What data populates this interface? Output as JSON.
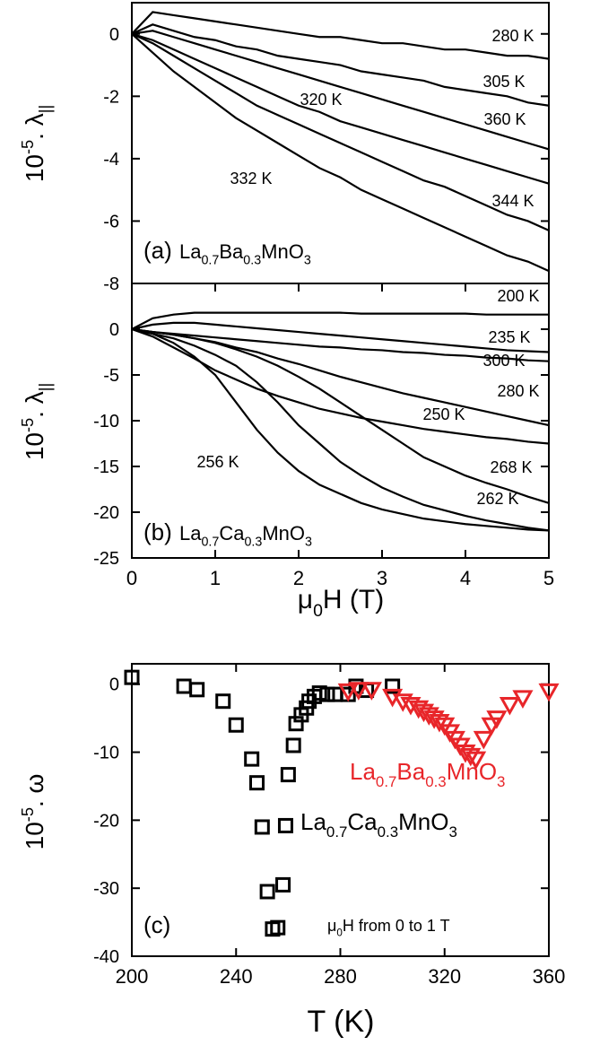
{
  "chart_data": [
    {
      "type": "line",
      "panel_label": "(a)",
      "formula": [
        {
          "text": "La"
        },
        {
          "text": "0.7",
          "script": "sub"
        },
        {
          "text": "Ba"
        },
        {
          "text": "0.3",
          "script": "sub"
        },
        {
          "text": "MnO"
        },
        {
          "text": "3",
          "script": "sub"
        }
      ],
      "ylabel": [
        {
          "text": "10"
        },
        {
          "text": "-5",
          "script": "sup"
        },
        {
          "text": ". λ"
        },
        {
          "text": "||",
          "script": "sub"
        }
      ],
      "xlim": [
        0,
        5
      ],
      "ylim": [
        -8,
        1
      ],
      "yticks": [
        -8,
        -6,
        -4,
        -2,
        0
      ],
      "x": [
        0,
        0.25,
        0.5,
        0.75,
        1,
        1.25,
        1.5,
        1.75,
        2,
        2.25,
        2.5,
        2.75,
        3,
        3.25,
        3.5,
        3.75,
        4,
        4.25,
        4.5,
        4.75,
        5
      ],
      "series": [
        {
          "name": "280 K",
          "color": "#000000",
          "values": [
            0,
            0.7,
            0.6,
            0.5,
            0.4,
            0.3,
            0.2,
            0.1,
            0,
            -0.1,
            -0.1,
            -0.2,
            -0.3,
            -0.3,
            -0.4,
            -0.5,
            -0.5,
            -0.6,
            -0.7,
            -0.7,
            -0.8
          ]
        },
        {
          "name": "305 K",
          "color": "#000000",
          "values": [
            0,
            0.3,
            0.1,
            -0.1,
            -0.2,
            -0.4,
            -0.5,
            -0.7,
            -0.8,
            -0.9,
            -1,
            -1.2,
            -1.3,
            -1.4,
            -1.5,
            -1.7,
            -1.8,
            -1.9,
            -2,
            -2.2,
            -2.3
          ]
        },
        {
          "name": "320 K",
          "color": "#000000",
          "values": [
            0,
            -0.2,
            -0.5,
            -0.8,
            -1.1,
            -1.4,
            -1.7,
            -2,
            -2.3,
            -2.5,
            -2.8,
            -3,
            -3.2,
            -3.4,
            -3.6,
            -3.8,
            -4,
            -4.2,
            -4.4,
            -4.6,
            -4.8
          ]
        },
        {
          "name": "360 K",
          "color": "#000000",
          "values": [
            0,
            0.1,
            -0.1,
            -0.3,
            -0.5,
            -0.7,
            -0.9,
            -1.1,
            -1.3,
            -1.5,
            -1.7,
            -1.9,
            -2.1,
            -2.3,
            -2.5,
            -2.7,
            -2.9,
            -3.1,
            -3.3,
            -3.5,
            -3.7
          ]
        },
        {
          "name": "344 K",
          "color": "#000000",
          "values": [
            0,
            -0.3,
            -0.7,
            -1.1,
            -1.5,
            -1.9,
            -2.3,
            -2.6,
            -2.9,
            -3.2,
            -3.5,
            -3.8,
            -4.1,
            -4.4,
            -4.7,
            -4.9,
            -5.2,
            -5.5,
            -5.8,
            -6,
            -6.3
          ]
        },
        {
          "name": "332 K",
          "color": "#000000",
          "values": [
            0,
            -0.6,
            -1.2,
            -1.7,
            -2.2,
            -2.7,
            -3.1,
            -3.5,
            -3.9,
            -4.3,
            -4.6,
            -5,
            -5.3,
            -5.6,
            -5.9,
            -6.2,
            -6.5,
            -6.8,
            -7.1,
            -7.3,
            -7.6
          ]
        }
      ]
    },
    {
      "type": "line",
      "panel_label": "(b)",
      "formula": [
        {
          "text": "La"
        },
        {
          "text": "0.7",
          "script": "sub"
        },
        {
          "text": "Ca"
        },
        {
          "text": "0.3",
          "script": "sub"
        },
        {
          "text": "MnO"
        },
        {
          "text": "3",
          "script": "sub"
        }
      ],
      "ylabel": [
        {
          "text": "10"
        },
        {
          "text": "-5",
          "script": "sup"
        },
        {
          "text": ". λ"
        },
        {
          "text": "||",
          "script": "sub"
        }
      ],
      "xlabel": [
        {
          "text": "μ"
        },
        {
          "text": "0",
          "script": "sub"
        },
        {
          "text": "H (T)"
        }
      ],
      "xlim": [
        0,
        5
      ],
      "xticks": [
        0,
        1,
        2,
        3,
        4,
        5
      ],
      "ylim": [
        -25,
        5
      ],
      "yticks": [
        -25,
        -20,
        -15,
        -10,
        -5,
        0
      ],
      "x": [
        0,
        0.25,
        0.5,
        0.75,
        1,
        1.25,
        1.5,
        1.75,
        2,
        2.25,
        2.5,
        2.75,
        3,
        3.25,
        3.5,
        3.75,
        4,
        4.25,
        4.5,
        4.75,
        5
      ],
      "series": [
        {
          "name": "200 K",
          "color": "#000000",
          "values": [
            0,
            1.2,
            1.6,
            1.8,
            1.8,
            1.8,
            1.8,
            1.8,
            1.8,
            1.8,
            1.8,
            1.7,
            1.7,
            1.7,
            1.7,
            1.7,
            1.7,
            1.6,
            1.6,
            1.6,
            1.6
          ]
        },
        {
          "name": "235 K",
          "color": "#000000",
          "values": [
            0,
            0.5,
            0.7,
            0.7,
            0.5,
            0.3,
            0.1,
            -0.1,
            -0.3,
            -0.5,
            -0.7,
            -0.9,
            -1.1,
            -1.3,
            -1.5,
            -1.7,
            -1.9,
            -2.1,
            -2.3,
            -2.4,
            -2.5
          ]
        },
        {
          "name": "300 K",
          "color": "#000000",
          "values": [
            0,
            -0.3,
            -0.5,
            -0.7,
            -0.9,
            -1.1,
            -1.3,
            -1.5,
            -1.7,
            -1.9,
            -2,
            -2.2,
            -2.3,
            -2.5,
            -2.6,
            -2.8,
            -2.9,
            -3.1,
            -3.2,
            -3.4,
            -3.5
          ]
        },
        {
          "name": "280 K",
          "color": "#000000",
          "values": [
            0,
            -0.3,
            -0.6,
            -1,
            -1.4,
            -2,
            -2.5,
            -3.2,
            -3.8,
            -4.5,
            -5.2,
            -5.8,
            -6.4,
            -7,
            -7.5,
            -8,
            -8.5,
            -9,
            -9.5,
            -10,
            -10.5
          ]
        },
        {
          "name": "250 K",
          "color": "#000000",
          "values": [
            0,
            -0.8,
            -2,
            -3.2,
            -4.5,
            -5.5,
            -6.5,
            -7.3,
            -8,
            -8.7,
            -9.2,
            -9.7,
            -10.1,
            -10.5,
            -10.9,
            -11.2,
            -11.5,
            -11.8,
            -12,
            -12.3,
            -12.5
          ]
        },
        {
          "name": "268 K",
          "color": "#000000",
          "values": [
            0,
            -0.3,
            -0.6,
            -1,
            -1.5,
            -2.2,
            -3,
            -4,
            -5.2,
            -6.5,
            -8,
            -9.5,
            -11,
            -12.5,
            -14,
            -15,
            -16,
            -16.8,
            -17.5,
            -18.3,
            -19
          ]
        },
        {
          "name": "262 K",
          "color": "#000000",
          "values": [
            0,
            -0.5,
            -1,
            -1.8,
            -2.8,
            -4,
            -5.8,
            -8,
            -10.5,
            -12.5,
            -14.5,
            -16,
            -17.3,
            -18.3,
            -19.2,
            -19.8,
            -20.4,
            -20.9,
            -21.3,
            -21.7,
            -22
          ]
        },
        {
          "name": "256 K",
          "color": "#000000",
          "values": [
            0,
            -0.5,
            -1.5,
            -3,
            -5,
            -8,
            -11,
            -13.5,
            -15.5,
            -17,
            -18,
            -19,
            -19.7,
            -20.2,
            -20.7,
            -21,
            -21.3,
            -21.5,
            -21.7,
            -21.9,
            -22
          ]
        }
      ]
    },
    {
      "type": "scatter",
      "panel_label": "(c)",
      "note": [
        {
          "text": "μ"
        },
        {
          "text": "0",
          "script": "sub"
        },
        {
          "text": "H from 0 to 1 T"
        }
      ],
      "ylabel": [
        {
          "text": "10"
        },
        {
          "text": "-5",
          "script": "sup"
        },
        {
          "text": ". ω"
        }
      ],
      "xlabel": [
        {
          "text": "T (K)"
        }
      ],
      "xlim": [
        200,
        360
      ],
      "xticks": [
        200,
        240,
        280,
        320,
        360
      ],
      "ylim": [
        -40,
        3
      ],
      "yticks": [
        -40,
        -30,
        -20,
        -10,
        0
      ],
      "series": [
        {
          "label_parts": [
            {
              "text": "La"
            },
            {
              "text": "0.7",
              "script": "sub"
            },
            {
              "text": "Ca"
            },
            {
              "text": "0.3",
              "script": "sub"
            },
            {
              "text": "MnO"
            },
            {
              "text": "3",
              "script": "sub"
            }
          ],
          "color": "#000000",
          "marker": "square",
          "x": [
            200,
            220,
            225,
            235,
            240,
            246,
            248,
            250,
            252,
            254,
            256,
            258,
            259,
            260,
            262,
            263,
            265,
            267,
            268,
            270,
            272,
            275,
            278,
            283,
            286,
            290,
            300
          ],
          "values": [
            1,
            -0.3,
            -0.8,
            -2.5,
            -6,
            -11,
            -14.5,
            -21,
            -30.5,
            -36,
            -35.8,
            -29.5,
            -20.8,
            -13.3,
            -9,
            -5.8,
            -4.5,
            -3.5,
            -2.5,
            -1.8,
            -1.3,
            -1.5,
            -1.5,
            -1.5,
            -0.3,
            -0.9,
            -0.3
          ]
        },
        {
          "label_parts": [
            {
              "text": "La"
            },
            {
              "text": "0.7",
              "script": "sub"
            },
            {
              "text": "Ba"
            },
            {
              "text": "0.3",
              "script": "sub"
            },
            {
              "text": "MnO"
            },
            {
              "text": "3",
              "script": "sub"
            }
          ],
          "color": "#e8262a",
          "marker": "triangle-down",
          "x": [
            283,
            287,
            292,
            300,
            304,
            307,
            310,
            312,
            314,
            316,
            318,
            320,
            322,
            324,
            326,
            328,
            330,
            332,
            335,
            338,
            340,
            345,
            350,
            360
          ],
          "values": [
            -1,
            -0.8,
            -0.8,
            -1.8,
            -2.5,
            -3,
            -3.5,
            -4,
            -4.5,
            -5,
            -5.5,
            -6,
            -7,
            -8,
            -9,
            -10,
            -10.5,
            -11,
            -8,
            -6,
            -5,
            -3,
            -2,
            -1
          ]
        }
      ]
    }
  ]
}
